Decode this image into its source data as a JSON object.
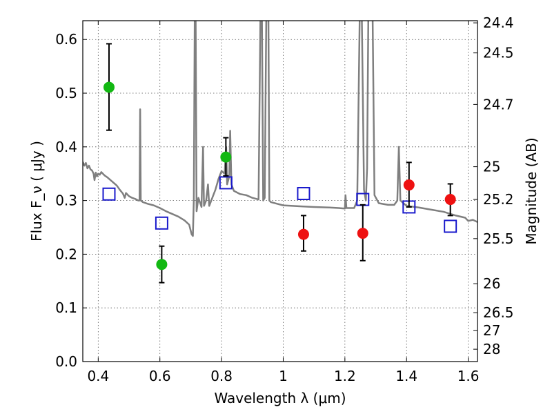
{
  "chart_data": {
    "type": "scatter",
    "xlabel": "Wavelength  λ (μm)",
    "ylabel_left": "Flux  F_ν  ( μJy )",
    "ylabel_right": "Magnitude (AB)",
    "xlim": [
      0.35,
      1.63
    ],
    "ylim": [
      0.0,
      0.635
    ],
    "x_ticks": [
      0.4,
      0.6,
      0.8,
      1.0,
      1.2,
      1.4,
      1.6
    ],
    "x_tick_labels": [
      "0.4",
      "0.6",
      "0.8",
      "1",
      "1.2",
      "1.4",
      "1.6"
    ],
    "y_ticks": [
      0.0,
      0.1,
      0.2,
      0.3,
      0.4,
      0.5,
      0.6
    ],
    "y_tick_labels": [
      "0.0",
      "0.1",
      "0.2",
      "0.3",
      "0.4",
      "0.5",
      "0.6"
    ],
    "magnitude_ticks": [
      {
        "label": "24.4",
        "flux": 0.631
      },
      {
        "label": "24.5",
        "flux": 0.575
      },
      {
        "label": "24.7",
        "flux": 0.479
      },
      {
        "label": "25",
        "flux": 0.363
      },
      {
        "label": "25.2",
        "flux": 0.302
      },
      {
        "label": "25.5",
        "flux": 0.229
      },
      {
        "label": "26",
        "flux": 0.145
      },
      {
        "label": "26.5",
        "flux": 0.091
      },
      {
        "label": "27",
        "flux": 0.058
      },
      {
        "label": "28",
        "flux": 0.023
      }
    ],
    "grid": true,
    "colors": {
      "green": "#12b812",
      "red": "#ee1111",
      "blue": "#1a1acc",
      "model": "#7f7f7f",
      "errorbar": "#000000",
      "grid": "#555555"
    },
    "series": [
      {
        "marker": "circle",
        "color": "green",
        "points": [
          {
            "x": 0.435,
            "y": 0.511,
            "yerr_low": 0.431,
            "yerr_high": 0.592
          },
          {
            "x": 0.606,
            "y": 0.181,
            "yerr_low": 0.147,
            "yerr_high": 0.215
          },
          {
            "x": 0.814,
            "y": 0.381,
            "yerr_low": 0.346,
            "yerr_high": 0.417
          }
        ]
      },
      {
        "marker": "circle",
        "color": "red",
        "points": [
          {
            "x": 1.066,
            "y": 0.237,
            "yerr_low": 0.206,
            "yerr_high": 0.272
          },
          {
            "x": 1.258,
            "y": 0.239,
            "yerr_low": 0.188,
            "yerr_high": 0.292
          },
          {
            "x": 1.408,
            "y": 0.329,
            "yerr_low": 0.288,
            "yerr_high": 0.371
          },
          {
            "x": 1.542,
            "y": 0.302,
            "yerr_low": 0.272,
            "yerr_high": 0.331
          }
        ]
      },
      {
        "marker": "open-square",
        "color": "blue",
        "points": [
          {
            "x": 0.435,
            "y": 0.312
          },
          {
            "x": 0.606,
            "y": 0.258
          },
          {
            "x": 0.814,
            "y": 0.333
          },
          {
            "x": 1.066,
            "y": 0.313
          },
          {
            "x": 1.258,
            "y": 0.302
          },
          {
            "x": 1.408,
            "y": 0.288
          },
          {
            "x": 1.542,
            "y": 0.252
          }
        ]
      }
    ],
    "model_spectrum": [
      [
        0.35,
        0.372
      ],
      [
        0.355,
        0.365
      ],
      [
        0.36,
        0.37
      ],
      [
        0.365,
        0.36
      ],
      [
        0.37,
        0.365
      ],
      [
        0.375,
        0.358
      ],
      [
        0.38,
        0.356
      ],
      [
        0.385,
        0.35
      ],
      [
        0.388,
        0.338
      ],
      [
        0.392,
        0.352
      ],
      [
        0.396,
        0.345
      ],
      [
        0.4,
        0.35
      ],
      [
        0.405,
        0.348
      ],
      [
        0.41,
        0.353
      ],
      [
        0.42,
        0.347
      ],
      [
        0.43,
        0.343
      ],
      [
        0.44,
        0.338
      ],
      [
        0.45,
        0.333
      ],
      [
        0.46,
        0.328
      ],
      [
        0.47,
        0.32
      ],
      [
        0.48,
        0.313
      ],
      [
        0.486,
        0.305
      ],
      [
        0.49,
        0.314
      ],
      [
        0.5,
        0.308
      ],
      [
        0.51,
        0.305
      ],
      [
        0.52,
        0.303
      ],
      [
        0.53,
        0.3
      ],
      [
        0.534,
        0.3
      ],
      [
        0.536,
        0.47
      ],
      [
        0.538,
        0.3
      ],
      [
        0.545,
        0.297
      ],
      [
        0.56,
        0.294
      ],
      [
        0.58,
        0.291
      ],
      [
        0.6,
        0.286
      ],
      [
        0.62,
        0.28
      ],
      [
        0.64,
        0.275
      ],
      [
        0.66,
        0.27
      ],
      [
        0.68,
        0.263
      ],
      [
        0.695,
        0.255
      ],
      [
        0.703,
        0.237
      ],
      [
        0.707,
        0.234
      ],
      [
        0.71,
        0.3
      ],
      [
        0.713,
        0.64
      ],
      [
        0.716,
        0.64
      ],
      [
        0.719,
        0.28
      ],
      [
        0.725,
        0.305
      ],
      [
        0.735,
        0.288
      ],
      [
        0.74,
        0.4
      ],
      [
        0.743,
        0.29
      ],
      [
        0.75,
        0.3
      ],
      [
        0.756,
        0.33
      ],
      [
        0.76,
        0.29
      ],
      [
        0.77,
        0.305
      ],
      [
        0.78,
        0.32
      ],
      [
        0.79,
        0.34
      ],
      [
        0.8,
        0.355
      ],
      [
        0.81,
        0.35
      ],
      [
        0.815,
        0.4
      ],
      [
        0.818,
        0.33
      ],
      [
        0.825,
        0.345
      ],
      [
        0.828,
        0.43
      ],
      [
        0.832,
        0.33
      ],
      [
        0.84,
        0.318
      ],
      [
        0.86,
        0.312
      ],
      [
        0.88,
        0.31
      ],
      [
        0.9,
        0.305
      ],
      [
        0.92,
        0.302
      ],
      [
        0.926,
        0.64
      ],
      [
        0.931,
        0.64
      ],
      [
        0.935,
        0.3
      ],
      [
        0.94,
        0.305
      ],
      [
        0.945,
        0.64
      ],
      [
        0.952,
        0.64
      ],
      [
        0.955,
        0.3
      ],
      [
        0.96,
        0.297
      ],
      [
        0.98,
        0.294
      ],
      [
        1.0,
        0.291
      ],
      [
        1.03,
        0.29
      ],
      [
        1.06,
        0.289
      ],
      [
        1.1,
        0.288
      ],
      [
        1.15,
        0.287
      ],
      [
        1.18,
        0.286
      ],
      [
        1.2,
        0.285
      ],
      [
        1.202,
        0.31
      ],
      [
        1.205,
        0.286
      ],
      [
        1.23,
        0.286
      ],
      [
        1.24,
        0.3
      ],
      [
        1.248,
        0.64
      ],
      [
        1.255,
        0.64
      ],
      [
        1.262,
        0.32
      ],
      [
        1.268,
        0.3
      ],
      [
        1.272,
        0.36
      ],
      [
        1.276,
        0.64
      ],
      [
        1.29,
        0.64
      ],
      [
        1.296,
        0.31
      ],
      [
        1.31,
        0.295
      ],
      [
        1.34,
        0.292
      ],
      [
        1.36,
        0.292
      ],
      [
        1.37,
        0.3
      ],
      [
        1.375,
        0.4
      ],
      [
        1.38,
        0.3
      ],
      [
        1.4,
        0.29
      ],
      [
        1.44,
        0.287
      ],
      [
        1.48,
        0.283
      ],
      [
        1.52,
        0.279
      ],
      [
        1.56,
        0.272
      ],
      [
        1.59,
        0.268
      ],
      [
        1.6,
        0.262
      ],
      [
        1.615,
        0.264
      ],
      [
        1.63,
        0.26
      ]
    ]
  }
}
